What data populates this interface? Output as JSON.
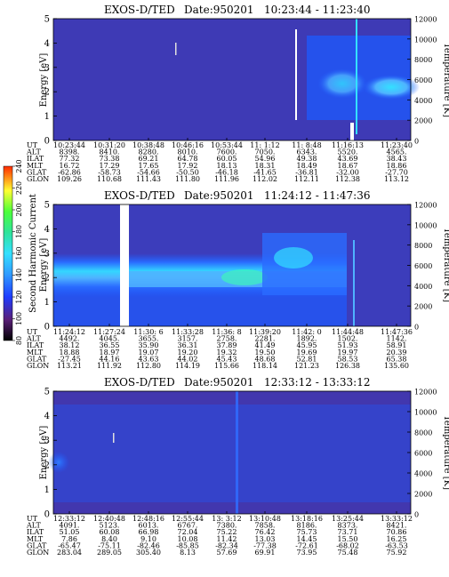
{
  "colorbar": {
    "title": "Second Harmonic Current",
    "ticks": [
      "80",
      "100",
      "120",
      "140",
      "160",
      "180",
      "200",
      "220",
      "240"
    ]
  },
  "colors": {
    "background": "#5a1f78",
    "blue": "#1e5bff",
    "light_blue": "#4fb3ff",
    "cyan": "#33e0ff",
    "green": "#3cffb0"
  },
  "chart_data": [
    {
      "type": "heatmap",
      "title": "EXOS-D/TED",
      "date": "Date:950201",
      "range": "10:23:44 - 11:23:40",
      "ylabel": "Energy [eV]",
      "y2label": "Temperature [K]",
      "ylim": [
        0,
        5
      ],
      "y2lim": [
        0,
        12000
      ],
      "yticks": [
        "0",
        "1",
        "2",
        "3",
        "4",
        "5"
      ],
      "y2ticks": [
        "0",
        "2000",
        "4000",
        "6000",
        "8000",
        "10000",
        "12000"
      ],
      "row_labels": [
        "UT",
        "ALT",
        "ILAT",
        "MLT",
        "GLAT",
        "GLON"
      ],
      "columns": [
        [
          "10:23:44",
          "8398.",
          "77.32",
          "16.72",
          "-62.86",
          "109.26"
        ],
        [
          "10:31:20",
          "8410.",
          "73.38",
          "17.29",
          "-58.73",
          "110.68"
        ],
        [
          "10:38:48",
          "8280.",
          "69.21",
          "17.65",
          "-54.66",
          "111.43"
        ],
        [
          "10:46:16",
          "8010.",
          "64.78",
          "17.92",
          "-50.50",
          "111.80"
        ],
        [
          "10:53:44",
          "7600.",
          "60.05",
          "18.13",
          "-46.18",
          "111.96"
        ],
        [
          "11: 1:12",
          "7050.",
          "54.96",
          "18.31",
          "-41.65",
          "112.02"
        ],
        [
          "11: 8:48",
          "6343.",
          "49.38",
          "18.49",
          "-36.81",
          "112.11"
        ],
        [
          "11:16:13",
          "5520.",
          "43.69",
          "18.67",
          "-32.00",
          "112.38"
        ],
        [
          "11:23:40",
          "4565.",
          "38.43",
          "18.86",
          "-27.70",
          "113.12"
        ]
      ]
    },
    {
      "type": "heatmap",
      "title": "EXOS-D/TED",
      "date": "Date:950201",
      "range": "11:24:12 - 11:47:36",
      "ylabel": "Energy [eV]",
      "y2label": "Temperature [K]",
      "ylim": [
        0,
        5
      ],
      "y2lim": [
        0,
        12000
      ],
      "yticks": [
        "0",
        "1",
        "2",
        "3",
        "4",
        "5"
      ],
      "y2ticks": [
        "0",
        "2000",
        "4000",
        "6000",
        "8000",
        "10000",
        "12000"
      ],
      "row_labels": [
        "UT",
        "ALT",
        "ILAT",
        "MLT",
        "GLAT",
        "GLON"
      ],
      "columns": [
        [
          "11:24:12",
          "4492.",
          "38.12",
          "18.88",
          "-27.45",
          "113.21"
        ],
        [
          "11:27:24",
          "4045.",
          "36.55",
          "18.97",
          "44.16",
          "111.92"
        ],
        [
          "11:30: 6",
          "3655.",
          "35.90",
          "19.07",
          "43.63",
          "112.80"
        ],
        [
          "11:33:28",
          "3157.",
          "36.31",
          "19.20",
          "44.02",
          "114.19"
        ],
        [
          "11:36: 8",
          "2758.",
          "37.89",
          "19.32",
          "45.43",
          "115.66"
        ],
        [
          "11:39:20",
          "2281.",
          "41.49",
          "19.50",
          "48.68",
          "118.14"
        ],
        [
          "11:42: 0",
          "1892.",
          "45.95",
          "19.69",
          "52.81",
          "121.23"
        ],
        [
          "11:44:48",
          "1502.",
          "51.93",
          "19.97",
          "58.53",
          "126.38"
        ],
        [
          "11:47:36",
          "1142.",
          "58.91",
          "20.39",
          "65.38",
          "135.60"
        ]
      ]
    },
    {
      "type": "heatmap",
      "title": "EXOS-D/TED",
      "date": "Date:950201",
      "range": "12:33:12 - 13:33:12",
      "ylabel": "Energy [eV]",
      "y2label": "Temperature [K]",
      "ylim": [
        0,
        5
      ],
      "y2lim": [
        0,
        12000
      ],
      "yticks": [
        "0",
        "1",
        "2",
        "3",
        "4",
        "5"
      ],
      "y2ticks": [
        "0",
        "2000",
        "4000",
        "6000",
        "8000",
        "10000",
        "12000"
      ],
      "row_labels": [
        "UT",
        "ALT",
        "ILAT",
        "MLT",
        "GLAT",
        "GLON"
      ],
      "columns": [
        [
          "12:33:12",
          "4091.",
          "51.05",
          "7.86",
          "-65.47",
          "283.04"
        ],
        [
          "12:40:48",
          "5123.",
          "60.08",
          "8.40",
          "-75.11",
          "289.05"
        ],
        [
          "12:48:16",
          "6013.",
          "66.98",
          "9.10",
          "-82.46",
          "305.40"
        ],
        [
          "12:55:44",
          "6767.",
          "72.04",
          "10.08",
          "-85.85",
          "8.13"
        ],
        [
          "13: 3:12",
          "7380.",
          "75.22",
          "11.42",
          "-82.34",
          "57.69"
        ],
        [
          "13:10:48",
          "7858.",
          "76.42",
          "13.03",
          "-77.38",
          "69.91"
        ],
        [
          "13:18:16",
          "8186.",
          "75.73",
          "14.45",
          "-72.61",
          "73.95"
        ],
        [
          "13:25:44",
          "8373.",
          "73.71",
          "15.50",
          "-68.02",
          "75.48"
        ],
        [
          "13:33:12",
          "8421.",
          "70.86",
          "16.25",
          "-63.53",
          "75.92"
        ]
      ]
    }
  ]
}
